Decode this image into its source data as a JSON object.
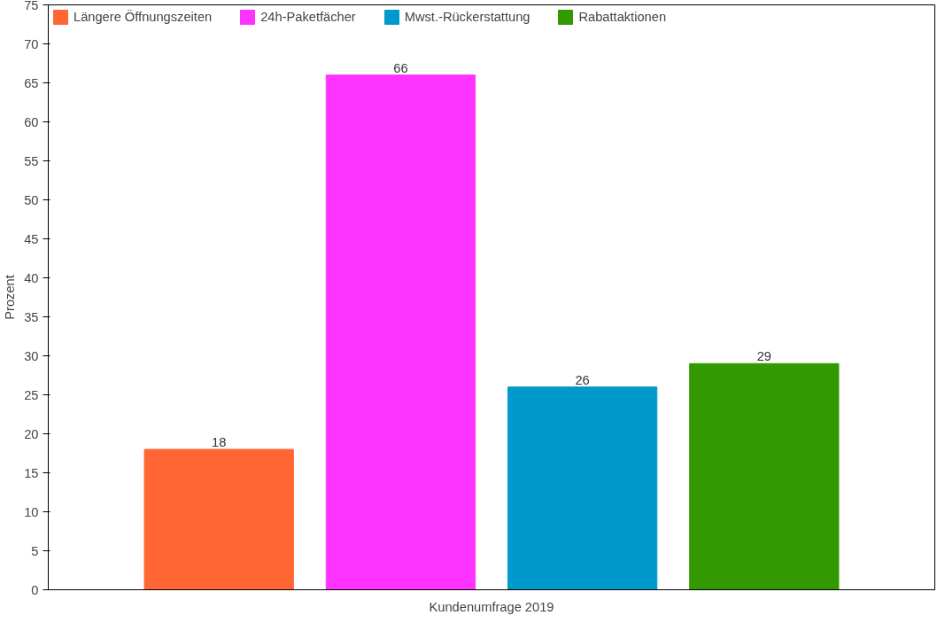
{
  "chart_data": {
    "type": "bar",
    "xlabel": "Kundenumfrage 2019",
    "ylabel": "Prozent",
    "categories": [
      null
    ],
    "series": [
      {
        "name": "Längere Öffnungszeiten",
        "color": "#ff6633",
        "values": [
          18
        ]
      },
      {
        "name": "24h-Paketfächer",
        "color": "#ff33ff",
        "values": [
          66
        ]
      },
      {
        "name": "Mwst.-Rückerstattung",
        "color": "#0099cc",
        "values": [
          26
        ]
      },
      {
        "name": "Rabattaktionen",
        "color": "#339900",
        "values": [
          29
        ]
      }
    ],
    "ylim": [
      0,
      75
    ],
    "yticks": [
      0,
      5,
      10,
      15,
      20,
      25,
      30,
      35,
      40,
      45,
      50,
      55,
      60,
      65,
      70,
      75
    ],
    "data_labels": true,
    "grid": false,
    "legend": "top left"
  }
}
